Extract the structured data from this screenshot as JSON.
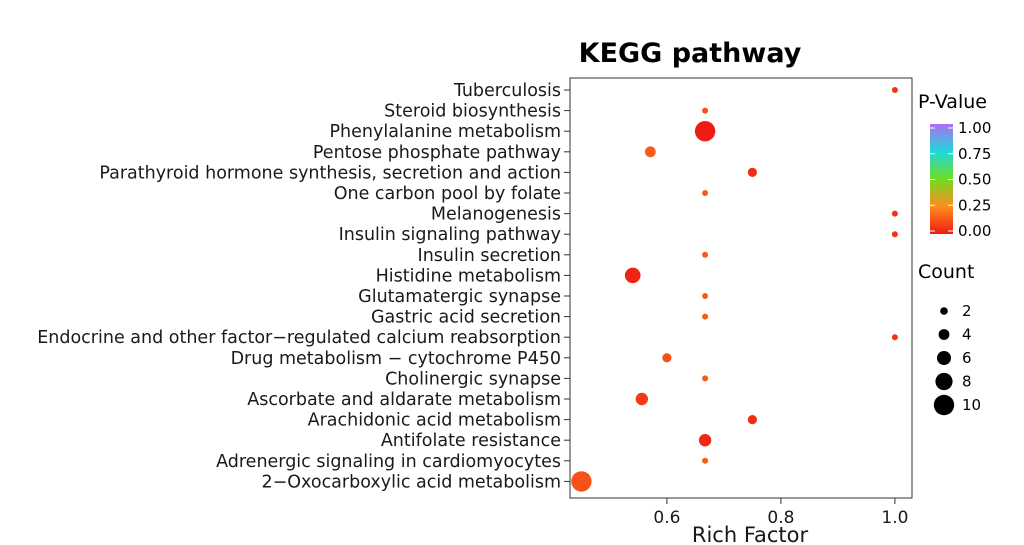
{
  "chart_data": {
    "type": "scatter",
    "title": "KEGG pathway",
    "xlabel": "Rich Factor",
    "ylabel": "",
    "xlim": [
      0.43,
      1.03
    ],
    "xticks": [
      "0.6",
      "0.8",
      "1.0"
    ],
    "xtick_values": [
      0.6,
      0.8,
      1.0
    ],
    "grid": false,
    "legend_position": "right",
    "categories": [
      "Tuberculosis",
      "Steroid biosynthesis",
      "Phenylalanine metabolism",
      "Pentose phosphate pathway",
      "Parathyroid hormone synthesis, secretion and action",
      "One carbon pool by folate",
      "Melanogenesis",
      "Insulin signaling pathway",
      "Insulin secretion",
      "Histidine metabolism",
      "Glutamatergic synapse",
      "Gastric acid secretion",
      "Endocrine and other factor−regulated calcium reabsorption",
      "Drug metabolism − cytochrome P450",
      "Cholinergic synapse",
      "Ascorbate and aldarate metabolism",
      "Arachidonic acid metabolism",
      "Antifolate resistance",
      "Adrenergic signaling in cardiomyocytes",
      "2−Oxocarboxylic acid metabolism"
    ],
    "points": [
      {
        "y": "Tuberculosis",
        "x": 1.0,
        "count": 1,
        "pvalue": 0.05
      },
      {
        "y": "Steroid biosynthesis",
        "x": 0.667,
        "count": 1,
        "pvalue": 0.12
      },
      {
        "y": "Phenylalanine metabolism",
        "x": 0.667,
        "count": 10,
        "pvalue": 0.0
      },
      {
        "y": "Pentose phosphate pathway",
        "x": 0.571,
        "count": 4,
        "pvalue": 0.14
      },
      {
        "y": "Parathyroid hormone synthesis, secretion and action",
        "x": 0.75,
        "count": 3,
        "pvalue": 0.04
      },
      {
        "y": "One carbon pool by folate",
        "x": 0.667,
        "count": 1,
        "pvalue": 0.14
      },
      {
        "y": "Melanogenesis",
        "x": 1.0,
        "count": 1,
        "pvalue": 0.05
      },
      {
        "y": "Insulin signaling pathway",
        "x": 1.0,
        "count": 1,
        "pvalue": 0.05
      },
      {
        "y": "Insulin secretion",
        "x": 0.667,
        "count": 1,
        "pvalue": 0.14
      },
      {
        "y": "Histidine metabolism",
        "x": 0.54,
        "count": 7,
        "pvalue": 0.02
      },
      {
        "y": "Glutamatergic synapse",
        "x": 0.667,
        "count": 1,
        "pvalue": 0.14
      },
      {
        "y": "Gastric acid secretion",
        "x": 0.667,
        "count": 1,
        "pvalue": 0.14
      },
      {
        "y": "Endocrine and other factor−regulated calcium reabsorption",
        "x": 1.0,
        "count": 1,
        "pvalue": 0.05
      },
      {
        "y": "Drug metabolism − cytochrome P450",
        "x": 0.6,
        "count": 3,
        "pvalue": 0.12
      },
      {
        "y": "Cholinergic synapse",
        "x": 0.667,
        "count": 1,
        "pvalue": 0.14
      },
      {
        "y": "Ascorbate and aldarate metabolism",
        "x": 0.556,
        "count": 5,
        "pvalue": 0.07
      },
      {
        "y": "Arachidonic acid metabolism",
        "x": 0.75,
        "count": 3,
        "pvalue": 0.04
      },
      {
        "y": "Antifolate resistance",
        "x": 0.667,
        "count": 5,
        "pvalue": 0.03
      },
      {
        "y": "Adrenergic signaling in cardiomyocytes",
        "x": 0.667,
        "count": 1,
        "pvalue": 0.14
      },
      {
        "y": "2−Oxocarboxylic acid metabolism",
        "x": 0.45,
        "count": 10,
        "pvalue": 0.12
      }
    ],
    "color_legend": {
      "title": "P-Value",
      "ticks": [
        "1.00",
        "0.75",
        "0.50",
        "0.25",
        "0.00"
      ],
      "tick_values": [
        1.0,
        0.75,
        0.5,
        0.25,
        0.0
      ],
      "colors": [
        "#ee1c12",
        "#ff8c1f",
        "#6fdc23",
        "#1fd8dd",
        "#b06cf2"
      ]
    },
    "size_legend": {
      "title": "Count",
      "values": [
        2,
        4,
        6,
        8,
        10
      ],
      "labels": [
        "2",
        "4",
        "6",
        "8",
        "10"
      ]
    }
  }
}
